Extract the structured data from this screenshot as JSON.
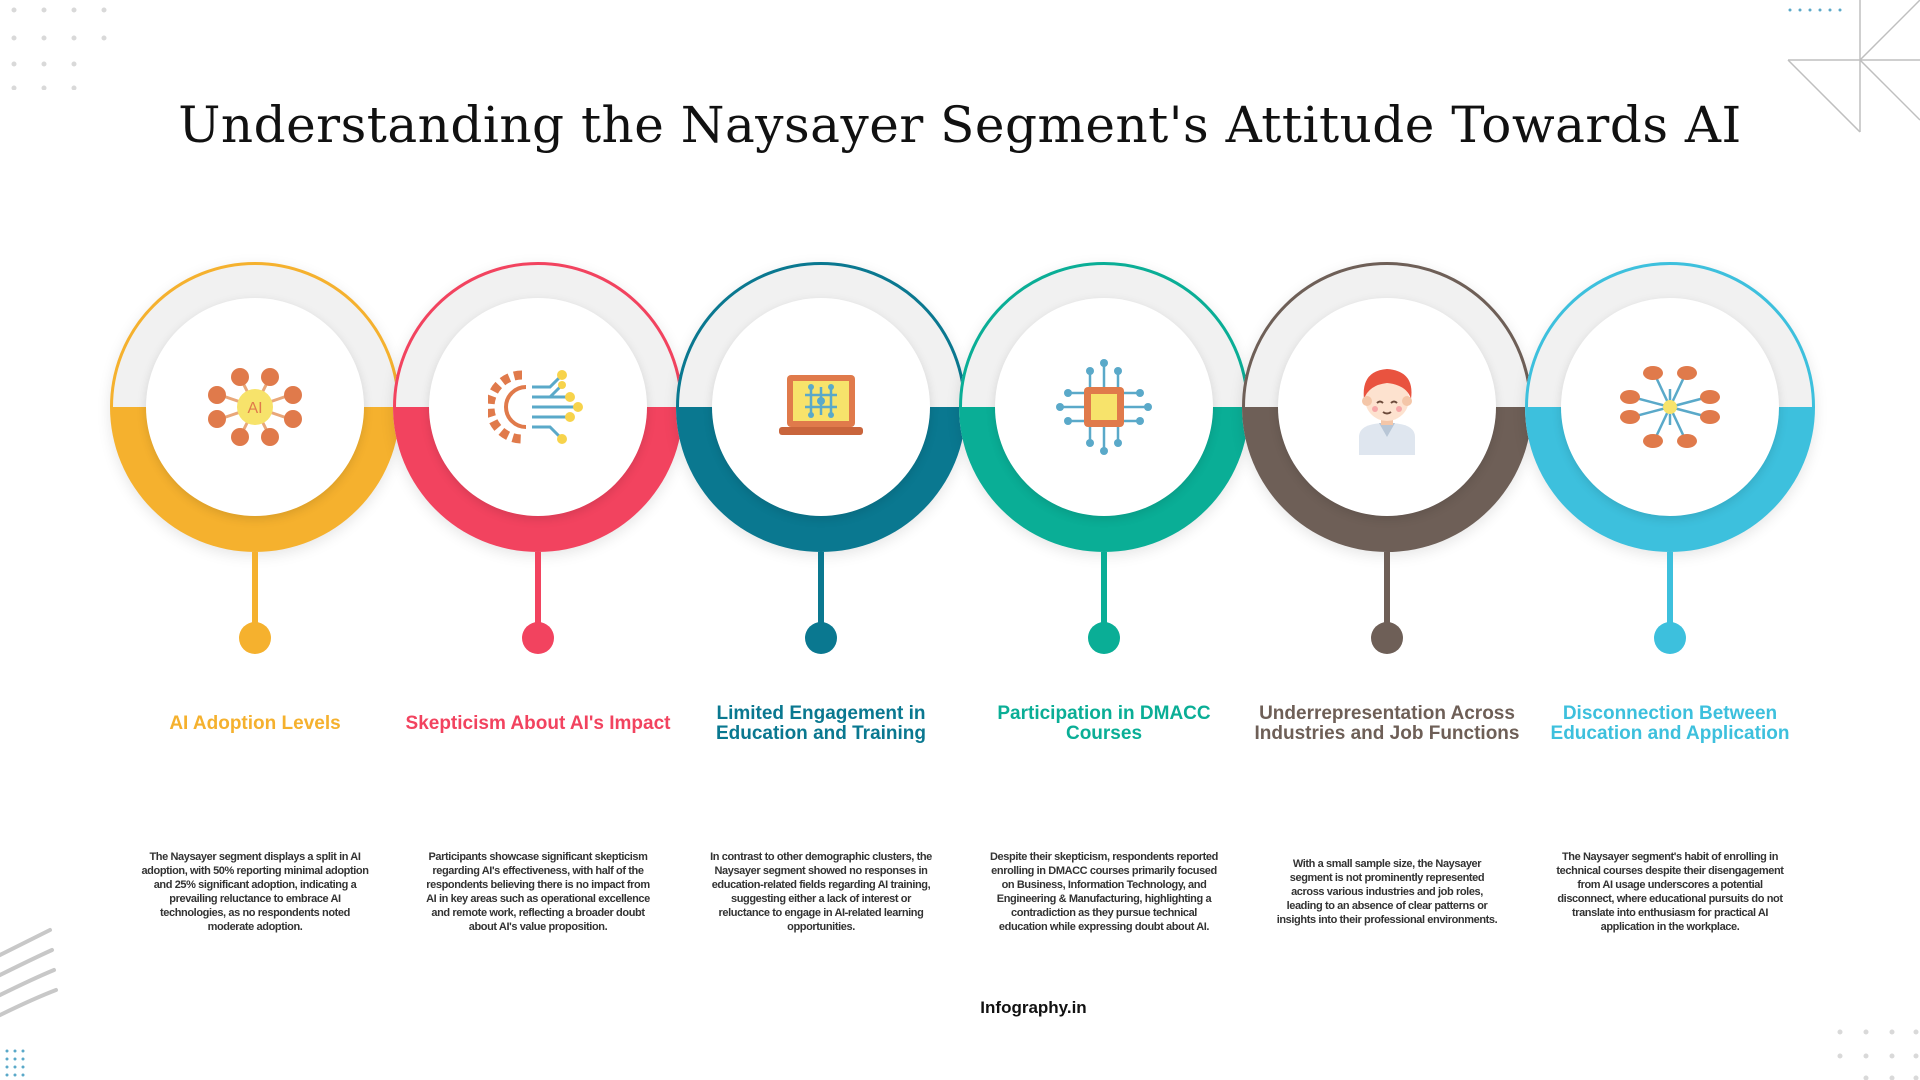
{
  "title": "Understanding the Naysayer Segment's Attitude Towards AI",
  "steps": [
    {
      "heading": "AI Adoption Levels",
      "description": "The Naysayer segment displays a split in AI adoption, with 50% reporting minimal adoption and 25% significant adoption, indicating a prevailing reluctance to embrace AI technologies, as no respondents noted moderate adoption.",
      "color": "#F5B12E",
      "icon": "ai-network-icon",
      "icon_text": "AI"
    },
    {
      "heading": "Skepticism About AI's Impact",
      "description": "Participants showcase significant skepticism regarding AI's effectiveness, with half of the respondents believing there is no impact from AI in key areas such as operational excellence and remote work, reflecting a broader doubt about AI's value proposition.",
      "color": "#F2435F",
      "icon": "gear-circuit-icon"
    },
    {
      "heading": "Limited Engagement in Education and Training",
      "description": "In contrast to other demographic clusters, the Naysayer segment showed no responses in education-related fields regarding AI training, suggesting either a lack of interest or reluctance to engage in AI-related learning opportunities.",
      "color": "#0A7890",
      "icon": "laptop-icon"
    },
    {
      "heading": "Participation in DMACC Courses",
      "description": "Despite their skepticism, respondents reported enrolling in DMACC courses primarily focused on Business, Information Technology, and Engineering & Manufacturing, highlighting a contradiction as they pursue technical education while expressing doubt about AI.",
      "color": "#0AAE96",
      "icon": "chip-icon"
    },
    {
      "heading": "Underrepresentation Across Industries and Job Functions",
      "description": "With a small sample size, the Naysayer segment is not prominently represented across various industries and job roles, leading to an absence of clear patterns or insights into their professional environments.",
      "color": "#6E5F57",
      "icon": "person-avatar-icon"
    },
    {
      "heading": "Disconnection Between Education and Application",
      "description": "The Naysayer segment's habit of enrolling in technical courses despite their disengagement from AI usage underscores a potential disconnect, where educational pursuits do not translate into enthusiasm for practical AI application in the workplace.",
      "color": "#3DC0DD",
      "icon": "network-hub-icon"
    }
  ],
  "brand": "Infography.in"
}
